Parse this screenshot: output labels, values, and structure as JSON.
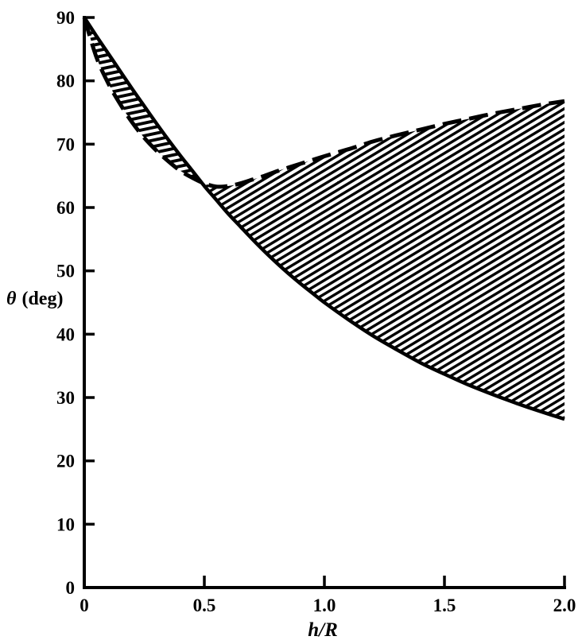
{
  "page": {
    "background": "#ffffff",
    "ink_color": "#000000"
  },
  "chart_data": {
    "type": "line",
    "title": "",
    "xlabel": "h/R",
    "ylabel": "θ (deg)",
    "ylabel_symbol": "θ",
    "ylabel_rest": "(deg)",
    "xlim": [
      0,
      2.0
    ],
    "ylim": [
      0,
      90
    ],
    "grid": false,
    "legend_position": "none",
    "x_ticks": [
      {
        "v": 0,
        "label": "0",
        "tick": false
      },
      {
        "v": 0.5,
        "label": "0.5",
        "tick": true
      },
      {
        "v": 1.0,
        "label": "1.0",
        "tick": true
      },
      {
        "v": 1.5,
        "label": "1.5",
        "tick": true
      },
      {
        "v": 2.0,
        "label": "2.0",
        "tick": true
      }
    ],
    "y_ticks": [
      {
        "v": 0,
        "label": "0",
        "tick": false
      },
      {
        "v": 10,
        "label": "10",
        "tick": true
      },
      {
        "v": 20,
        "label": "20",
        "tick": true
      },
      {
        "v": 30,
        "label": "30",
        "tick": true
      },
      {
        "v": 40,
        "label": "40",
        "tick": true
      },
      {
        "v": 50,
        "label": "50",
        "tick": true
      },
      {
        "v": 60,
        "label": "60",
        "tick": true
      },
      {
        "v": 70,
        "label": "70",
        "tick": true
      },
      {
        "v": 80,
        "label": "80",
        "tick": true
      },
      {
        "v": 90,
        "label": "90",
        "tick": true
      }
    ],
    "series": [
      {
        "name": "solid curve",
        "line_style": "solid",
        "points": [
          [
            0,
            90
          ],
          [
            0.05,
            87.1
          ],
          [
            0.1,
            84.3
          ],
          [
            0.15,
            81.5
          ],
          [
            0.2,
            78.7
          ],
          [
            0.25,
            76.0
          ],
          [
            0.3,
            73.3
          ],
          [
            0.35,
            70.7
          ],
          [
            0.4,
            68.2
          ],
          [
            0.45,
            65.8
          ],
          [
            0.5,
            63.4
          ],
          [
            0.55,
            61.2
          ],
          [
            0.6,
            59.0
          ],
          [
            0.65,
            57.0
          ],
          [
            0.7,
            55.0
          ],
          [
            0.75,
            53.1
          ],
          [
            0.8,
            51.3
          ],
          [
            0.85,
            49.6
          ],
          [
            0.9,
            48.0
          ],
          [
            0.95,
            46.5
          ],
          [
            1.0,
            45.0
          ],
          [
            1.1,
            42.3
          ],
          [
            1.2,
            39.8
          ],
          [
            1.3,
            37.6
          ],
          [
            1.4,
            35.5
          ],
          [
            1.5,
            33.7
          ],
          [
            1.6,
            32.0
          ],
          [
            1.7,
            30.5
          ],
          [
            1.8,
            29.1
          ],
          [
            1.9,
            27.8
          ],
          [
            2.0,
            26.6
          ]
        ]
      },
      {
        "name": "dashed curve",
        "line_style": "dashed",
        "points": [
          [
            0,
            90
          ],
          [
            0.05,
            83.8
          ],
          [
            0.1,
            79.6
          ],
          [
            0.15,
            76.3
          ],
          [
            0.2,
            73.4
          ],
          [
            0.25,
            71.0
          ],
          [
            0.3,
            69.0
          ],
          [
            0.35,
            67.3
          ],
          [
            0.4,
            65.8
          ],
          [
            0.45,
            64.7
          ],
          [
            0.5,
            63.8
          ],
          [
            0.55,
            63.3
          ],
          [
            0.6,
            63.4
          ],
          [
            0.65,
            63.8
          ],
          [
            0.7,
            64.4
          ],
          [
            0.75,
            65.0
          ],
          [
            0.8,
            65.7
          ],
          [
            0.85,
            66.3
          ],
          [
            0.9,
            66.9
          ],
          [
            0.95,
            67.5
          ],
          [
            1.0,
            68.1
          ],
          [
            1.1,
            69.2
          ],
          [
            1.2,
            70.4
          ],
          [
            1.3,
            71.4
          ],
          [
            1.4,
            72.3
          ],
          [
            1.5,
            73.2
          ],
          [
            1.6,
            74.0
          ],
          [
            1.7,
            74.8
          ],
          [
            1.8,
            75.5
          ],
          [
            1.9,
            76.2
          ],
          [
            2.0,
            76.8
          ]
        ]
      }
    ],
    "hatched_region": {
      "description": "area between the solid and dashed curves is hatched; curves cross near h/R = 0.49, theta = 64 deg",
      "crossing_point": [
        0.49,
        64
      ],
      "left_lens_hatch_angle_deg": 12,
      "right_lobe_hatch_angle_deg": 31
    }
  }
}
